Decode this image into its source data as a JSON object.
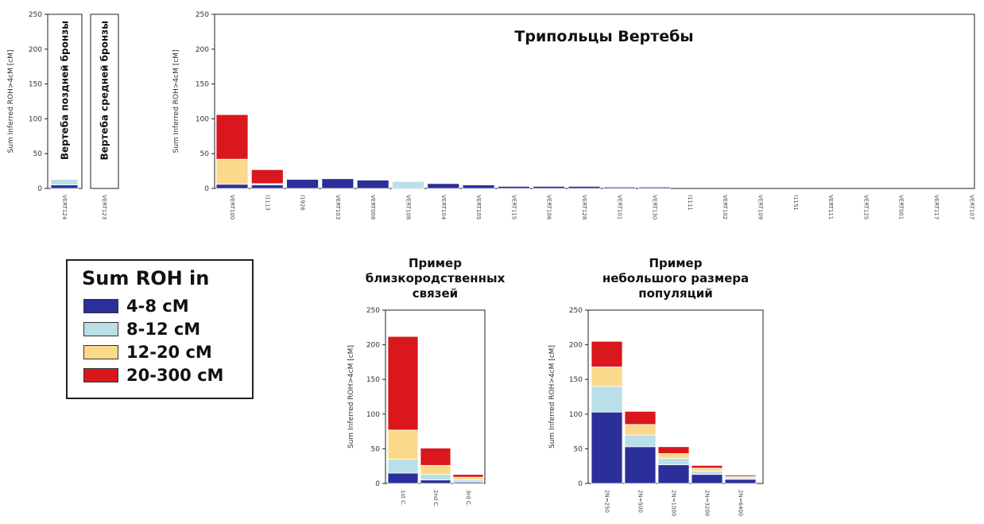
{
  "colors": {
    "seg_4_8": "#2b2f9a",
    "seg_8_12": "#b9dfe8",
    "seg_12_20": "#fbd98a",
    "seg_20_300": "#d9171c"
  },
  "legend": {
    "title": "Sum ROH in",
    "items": [
      {
        "label": "4-8 cM",
        "color": "#2b2f9a"
      },
      {
        "label": "8-12 cM",
        "color": "#b9dfe8"
      },
      {
        "label": "12-20 cM",
        "color": "#fbd98a"
      },
      {
        "label": "20-300 cM",
        "color": "#d9171c"
      }
    ]
  },
  "chart_data": [
    {
      "id": "late_bronze",
      "type": "bar",
      "stacked": true,
      "title": "",
      "inner_label": "Вертеба поздней бронзы",
      "ylabel": "Sum Inferred ROH>4cM [cM]",
      "ylim": [
        0,
        250
      ],
      "yticks": [
        0,
        50,
        100,
        150,
        200,
        250
      ],
      "categories": [
        "VERT124"
      ],
      "series": [
        {
          "values": [
            5
          ]
        },
        {
          "values": [
            8
          ]
        },
        {
          "values": [
            0
          ]
        },
        {
          "values": [
            0
          ]
        }
      ]
    },
    {
      "id": "middle_bronze",
      "type": "bar",
      "stacked": true,
      "title": "",
      "inner_label": "Вертеба средней бронзы",
      "ylabel": "",
      "ylim": [
        0,
        250
      ],
      "categories": [
        "VERT123"
      ],
      "series": [
        {
          "values": [
            0
          ]
        },
        {
          "values": [
            0
          ]
        },
        {
          "values": [
            0
          ]
        },
        {
          "values": [
            0
          ]
        }
      ]
    },
    {
      "id": "trypillia",
      "type": "bar",
      "stacked": true,
      "title": "Трипольцы Вертебы",
      "ylabel": "Sum Inferred ROH>4cM [cM]",
      "ylim": [
        0,
        250
      ],
      "yticks": [
        0,
        50,
        100,
        150,
        200,
        250
      ],
      "categories": [
        "VERT100",
        "I1113",
        "I1926",
        "VERT103",
        "VERT008",
        "VERT108",
        "VERT104",
        "VERT105",
        "VERT115",
        "VERT106",
        "VERT128",
        "VERT101",
        "VERT130",
        "I1111",
        "VERT102",
        "VERT109",
        "I1151",
        "VERT111",
        "VERT125",
        "VERT001",
        "VERT117",
        "VERT107"
      ],
      "series": [
        {
          "values": [
            6,
            5,
            13,
            14,
            12,
            0,
            7,
            5,
            3,
            3,
            3,
            2,
            2,
            0,
            0,
            0,
            0,
            0,
            0,
            0,
            0,
            0
          ]
        },
        {
          "values": [
            0,
            2,
            0,
            0,
            0,
            10,
            0,
            0,
            0,
            0,
            0,
            0,
            0,
            0,
            0,
            0,
            0,
            0,
            0,
            0,
            0,
            0
          ]
        },
        {
          "values": [
            36,
            0,
            0,
            0,
            0,
            0,
            0,
            0,
            0,
            0,
            0,
            0,
            0,
            0,
            0,
            0,
            0,
            0,
            0,
            0,
            0,
            0
          ]
        },
        {
          "values": [
            64,
            20,
            0,
            0,
            0,
            0,
            0,
            0,
            0,
            0,
            0,
            0,
            0,
            0,
            0,
            0,
            0,
            0,
            0,
            0,
            0,
            0
          ]
        }
      ]
    },
    {
      "id": "consanguinity",
      "type": "bar",
      "stacked": true,
      "title": "Пример близкородственных связей",
      "title_lines": [
        "Пример",
        "близкородственных",
        "связей"
      ],
      "ylabel": "Sum Inferred ROH>4cM [cM]",
      "ylim": [
        0,
        250
      ],
      "yticks": [
        0,
        50,
        100,
        150,
        200,
        250
      ],
      "categories": [
        "1st C.",
        "2nd C.",
        "3rd C."
      ],
      "series": [
        {
          "values": [
            15,
            5,
            2
          ]
        },
        {
          "values": [
            20,
            8,
            3
          ]
        },
        {
          "values": [
            42,
            13,
            4
          ]
        },
        {
          "values": [
            135,
            25,
            4
          ]
        }
      ]
    },
    {
      "id": "small_population",
      "type": "bar",
      "stacked": true,
      "title": "Пример небольшого размера популяций",
      "title_lines": [
        "Пример",
        "небольшого размера",
        "популяций"
      ],
      "ylabel": "Sum Inferred ROH>4cM [cM]",
      "ylim": [
        0,
        250
      ],
      "yticks": [
        0,
        50,
        100,
        150,
        200,
        250
      ],
      "categories": [
        "2N=250",
        "2N=500",
        "2N=1000",
        "2N=3200",
        "2N=6400"
      ],
      "series": [
        {
          "values": [
            103,
            53,
            27,
            13,
            6
          ]
        },
        {
          "values": [
            37,
            17,
            9,
            5,
            2
          ]
        },
        {
          "values": [
            28,
            15,
            7,
            4,
            2
          ]
        },
        {
          "values": [
            37,
            19,
            10,
            4,
            2
          ]
        }
      ]
    }
  ]
}
